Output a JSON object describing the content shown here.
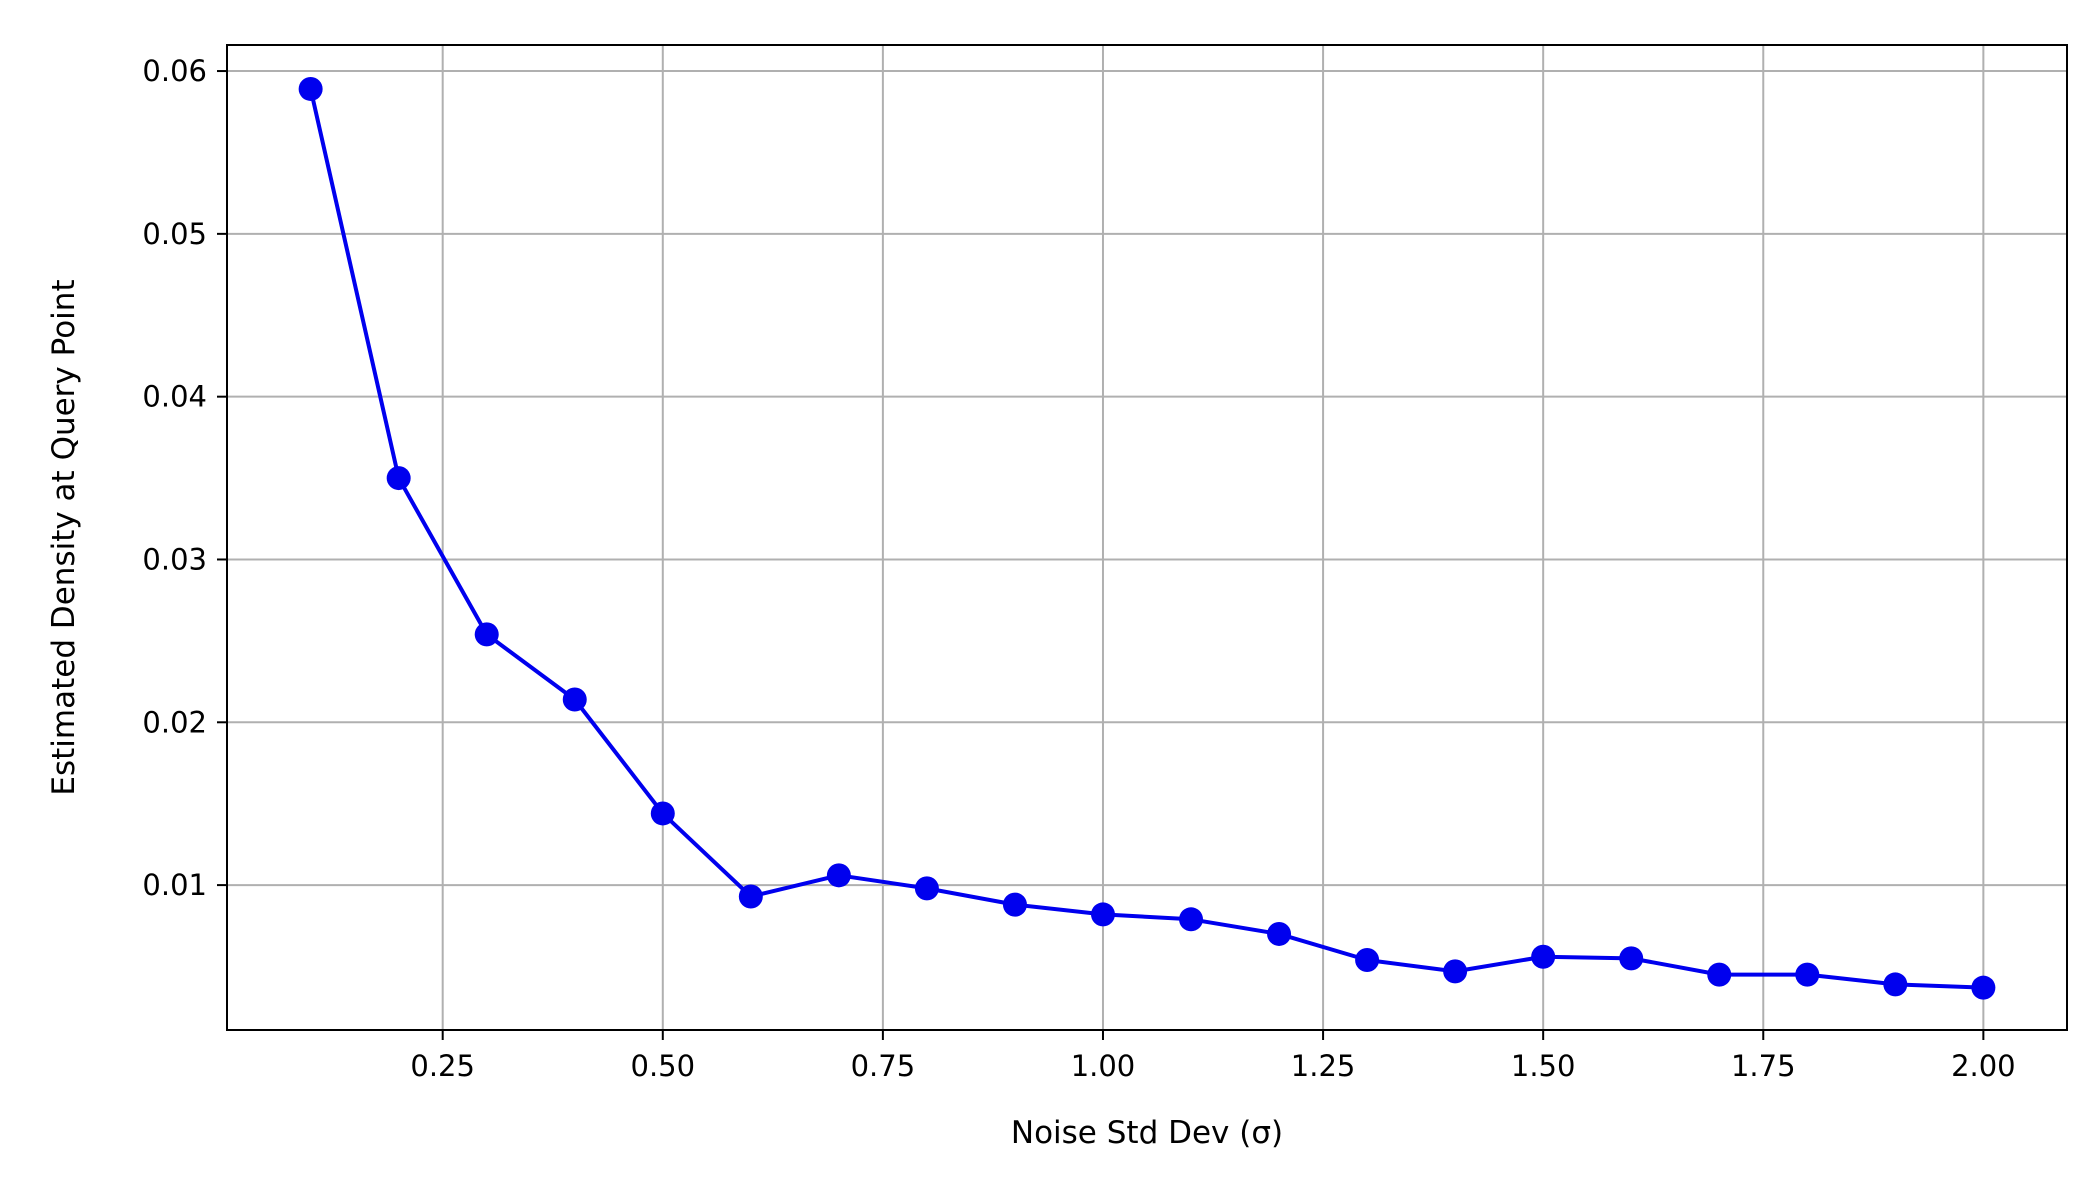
{
  "chart_data": {
    "type": "line",
    "title": "",
    "xlabel": "Noise Std Dev (σ)",
    "ylabel": "Estimated Density at Query Point",
    "xlim": [
      0.005,
      2.095
    ],
    "ylim": [
      0.0011,
      0.0616
    ],
    "grid": true,
    "legend": "none",
    "line_color": "#0000ee",
    "marker": "circle",
    "x_ticks": [
      {
        "value": 0.25,
        "label": "0.25"
      },
      {
        "value": 0.5,
        "label": "0.50"
      },
      {
        "value": 0.75,
        "label": "0.75"
      },
      {
        "value": 1.0,
        "label": "1.00"
      },
      {
        "value": 1.25,
        "label": "1.25"
      },
      {
        "value": 1.5,
        "label": "1.50"
      },
      {
        "value": 1.75,
        "label": "1.75"
      },
      {
        "value": 2.0,
        "label": "2.00"
      }
    ],
    "y_ticks": [
      {
        "value": 0.01,
        "label": "0.01"
      },
      {
        "value": 0.02,
        "label": "0.02"
      },
      {
        "value": 0.03,
        "label": "0.03"
      },
      {
        "value": 0.04,
        "label": "0.04"
      },
      {
        "value": 0.05,
        "label": "0.05"
      },
      {
        "value": 0.06,
        "label": "0.06"
      }
    ],
    "x": [
      0.1,
      0.2,
      0.3,
      0.4,
      0.5,
      0.6,
      0.7,
      0.8,
      0.9,
      1.0,
      1.1,
      1.2,
      1.3,
      1.4,
      1.5,
      1.6,
      1.7,
      1.8,
      1.9,
      2.0
    ],
    "series": [
      {
        "values": [
          0.0589,
          0.035,
          0.0254,
          0.0214,
          0.0144,
          0.0093,
          0.0106,
          0.0098,
          0.0088,
          0.0082,
          0.0079,
          0.007,
          0.0054,
          0.0047,
          0.0056,
          0.0055,
          0.0045,
          0.0045,
          0.0039,
          0.0037
        ]
      }
    ]
  }
}
